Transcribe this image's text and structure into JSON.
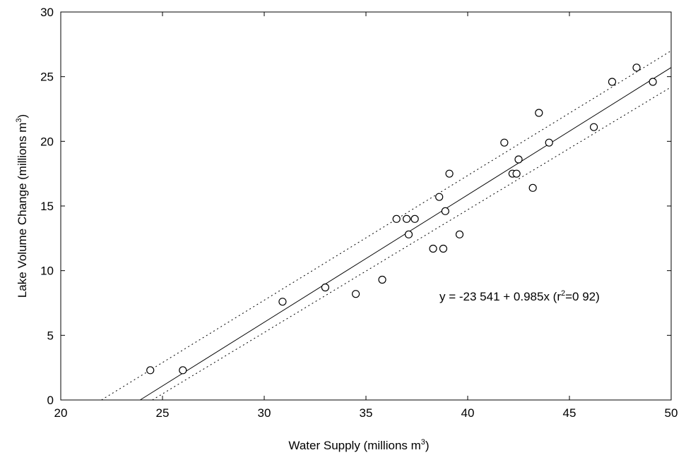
{
  "chart_data": {
    "type": "scatter",
    "title": "",
    "xlabel": "Water Supply (millions m",
    "xlabel_sup": "3",
    "xlabel_end": ")",
    "ylabel": "Lake Volume Change (millions m",
    "ylabel_sup": "3",
    "ylabel_end": ")",
    "xlim": [
      20,
      50
    ],
    "ylim": [
      0,
      30
    ],
    "x_ticks": [
      20,
      25,
      30,
      35,
      40,
      45,
      50
    ],
    "y_ticks": [
      0,
      5,
      10,
      15,
      20,
      25,
      30
    ],
    "grid": false,
    "points": [
      {
        "x": 24.4,
        "y": 2.3
      },
      {
        "x": 26.0,
        "y": 2.3
      },
      {
        "x": 30.9,
        "y": 7.6
      },
      {
        "x": 33.0,
        "y": 8.7
      },
      {
        "x": 34.5,
        "y": 8.2
      },
      {
        "x": 35.8,
        "y": 9.3
      },
      {
        "x": 36.5,
        "y": 14.0
      },
      {
        "x": 37.0,
        "y": 14.0
      },
      {
        "x": 37.4,
        "y": 14.0
      },
      {
        "x": 37.1,
        "y": 12.8
      },
      {
        "x": 38.3,
        "y": 11.7
      },
      {
        "x": 38.8,
        "y": 11.7
      },
      {
        "x": 38.6,
        "y": 15.7
      },
      {
        "x": 38.9,
        "y": 14.6
      },
      {
        "x": 39.1,
        "y": 17.5
      },
      {
        "x": 39.6,
        "y": 12.8
      },
      {
        "x": 41.8,
        "y": 19.9
      },
      {
        "x": 42.2,
        "y": 17.5
      },
      {
        "x": 42.4,
        "y": 17.5
      },
      {
        "x": 42.5,
        "y": 18.6
      },
      {
        "x": 43.2,
        "y": 16.4
      },
      {
        "x": 43.5,
        "y": 22.2
      },
      {
        "x": 44.0,
        "y": 19.9
      },
      {
        "x": 46.2,
        "y": 21.1
      },
      {
        "x": 47.1,
        "y": 24.6
      },
      {
        "x": 48.3,
        "y": 25.7
      },
      {
        "x": 49.1,
        "y": 24.6
      }
    ],
    "regression": {
      "intercept": -23.541,
      "slope": 0.985
    },
    "confidence_lower": [
      [
        24.5,
        0
      ],
      [
        50,
        24.2
      ]
    ],
    "confidence_upper": [
      [
        22.0,
        0
      ],
      [
        50,
        27.0
      ]
    ],
    "equation_text": "y = -23 541 + 0.985x  (r",
    "equation_sup": "2",
    "equation_end": "=0 92)"
  }
}
